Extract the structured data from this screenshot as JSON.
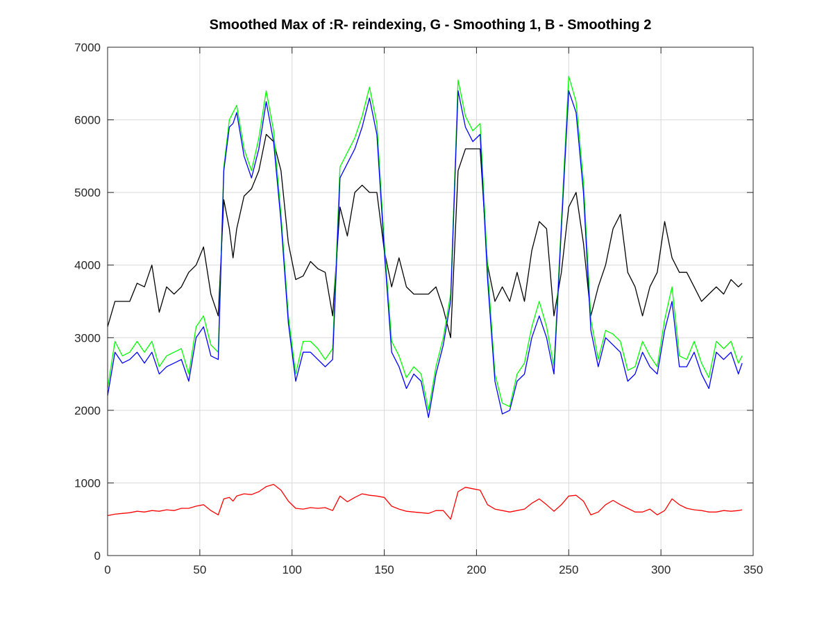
{
  "chart_data": {
    "type": "line",
    "title": "Smoothed Max of :R- reindexing, G - Smoothing 1, B - Smoothing 2",
    "xlabel": "",
    "ylabel": "",
    "xlim": [
      0,
      350
    ],
    "ylim": [
      0,
      7000
    ],
    "grid": true,
    "xticks": [
      "0",
      "50",
      "100",
      "150",
      "200",
      "250",
      "300",
      "350"
    ],
    "yticks": [
      "0",
      "1000",
      "2000",
      "3000",
      "4000",
      "5000",
      "6000",
      "7000"
    ],
    "x": [
      0,
      4,
      8,
      12,
      16,
      20,
      24,
      28,
      32,
      36,
      40,
      44,
      48,
      52,
      56,
      60,
      63,
      66,
      68,
      70,
      74,
      78,
      82,
      86,
      90,
      94,
      98,
      102,
      106,
      110,
      114,
      118,
      122,
      126,
      130,
      134,
      138,
      142,
      146,
      150,
      154,
      158,
      162,
      166,
      170,
      174,
      178,
      182,
      186,
      190,
      194,
      198,
      202,
      206,
      210,
      214,
      218,
      222,
      226,
      230,
      234,
      238,
      242,
      246,
      250,
      254,
      258,
      262,
      266,
      270,
      274,
      278,
      282,
      286,
      290,
      294,
      298,
      302,
      306,
      310,
      314,
      318,
      322,
      326,
      330,
      334,
      338,
      342,
      344
    ],
    "series": [
      {
        "color": "#000000",
        "values": [
          3150,
          3500,
          3500,
          3500,
          3750,
          3700,
          4000,
          3350,
          3700,
          3600,
          3700,
          3900,
          4000,
          4250,
          3600,
          3300,
          4900,
          4500,
          4100,
          4500,
          4950,
          5050,
          5300,
          5800,
          5700,
          5300,
          4300,
          3800,
          3850,
          4050,
          3950,
          3900,
          3300,
          4800,
          4400,
          5000,
          5100,
          5000,
          5000,
          4200,
          3700,
          4100,
          3700,
          3600,
          3600,
          3600,
          3700,
          3400,
          3000,
          5300,
          5600,
          5600,
          5600,
          4000,
          3500,
          3700,
          3500,
          3900,
          3500,
          4200,
          4600,
          4500,
          3300,
          3900,
          4800,
          5000,
          4300,
          3300,
          3700,
          4000,
          4500,
          4700,
          3900,
          3700,
          3300,
          3700,
          3900,
          4600,
          4100,
          3900,
          3900,
          3700,
          3500,
          3600,
          3700,
          3600,
          3800,
          3700,
          3750
        ]
      },
      {
        "color": "#00ff00",
        "values": [
          2300,
          2950,
          2750,
          2800,
          2950,
          2800,
          2950,
          2600,
          2750,
          2800,
          2850,
          2500,
          3150,
          3300,
          2900,
          2800,
          5350,
          6000,
          6100,
          6200,
          5600,
          5300,
          5750,
          6400,
          5850,
          4700,
          3300,
          2500,
          2950,
          2950,
          2850,
          2700,
          2850,
          5350,
          5550,
          5750,
          6050,
          6450,
          5950,
          4300,
          2950,
          2750,
          2450,
          2600,
          2500,
          2000,
          2600,
          3000,
          3600,
          6550,
          6050,
          5850,
          5950,
          3950,
          2500,
          2100,
          2050,
          2500,
          2650,
          3150,
          3500,
          3150,
          2600,
          4600,
          6600,
          6250,
          5150,
          3250,
          2700,
          3100,
          3050,
          2950,
          2550,
          2600,
          2950,
          2750,
          2600,
          3250,
          3700,
          2750,
          2700,
          2950,
          2650,
          2450,
          2950,
          2850,
          2950,
          2650,
          2750
        ]
      },
      {
        "color": "#0000ff",
        "values": [
          2200,
          2800,
          2650,
          2700,
          2800,
          2650,
          2800,
          2500,
          2600,
          2650,
          2700,
          2400,
          3000,
          3150,
          2750,
          2700,
          5300,
          5900,
          5950,
          6100,
          5500,
          5200,
          5600,
          6250,
          5700,
          4600,
          3200,
          2400,
          2800,
          2800,
          2700,
          2600,
          2700,
          5200,
          5400,
          5600,
          5900,
          6300,
          5800,
          4200,
          2800,
          2600,
          2300,
          2500,
          2400,
          1900,
          2500,
          2900,
          3500,
          6400,
          5900,
          5700,
          5800,
          3800,
          2400,
          1950,
          2000,
          2400,
          2500,
          3000,
          3300,
          3000,
          2500,
          4500,
          6400,
          6100,
          5000,
          3100,
          2600,
          3000,
          2900,
          2800,
          2400,
          2500,
          2800,
          2600,
          2500,
          3100,
          3500,
          2600,
          2600,
          2800,
          2500,
          2300,
          2800,
          2700,
          2800,
          2500,
          2650
        ]
      },
      {
        "color": "#ff0000",
        "values": [
          550,
          570,
          580,
          590,
          610,
          600,
          620,
          610,
          630,
          620,
          650,
          650,
          680,
          700,
          620,
          560,
          780,
          800,
          750,
          820,
          850,
          840,
          880,
          950,
          980,
          900,
          750,
          650,
          640,
          660,
          650,
          660,
          620,
          820,
          740,
          800,
          850,
          830,
          820,
          800,
          680,
          640,
          610,
          600,
          590,
          580,
          620,
          620,
          500,
          880,
          940,
          920,
          900,
          700,
          640,
          620,
          600,
          620,
          640,
          720,
          780,
          700,
          610,
          700,
          820,
          830,
          750,
          560,
          600,
          700,
          760,
          700,
          650,
          600,
          600,
          640,
          560,
          620,
          780,
          700,
          650,
          630,
          620,
          600,
          600,
          620,
          610,
          620,
          630
        ]
      }
    ]
  }
}
